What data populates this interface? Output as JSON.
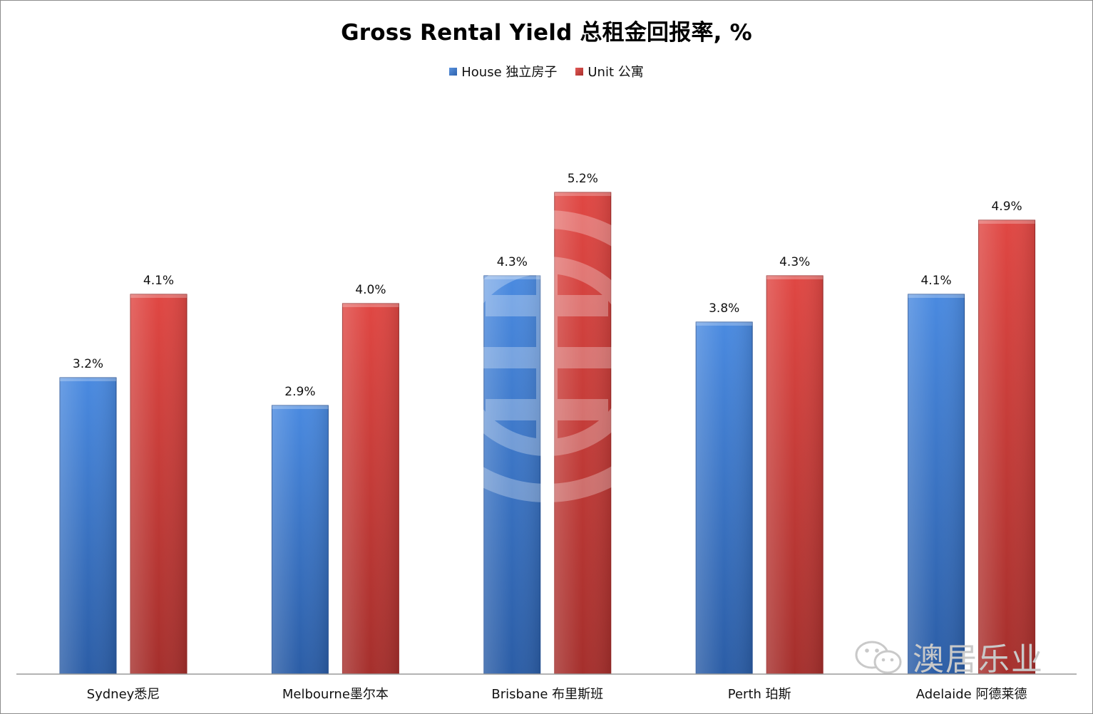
{
  "chart_data": {
    "type": "bar",
    "title": "Gross Rental Yield  总租金回报率, %",
    "categories": [
      "Sydney悉尼",
      "Melbourne墨尔本",
      "Brisbane 布里斯班",
      "Perth 珀斯",
      "Adelaide 阿德莱德"
    ],
    "series": [
      {
        "name": "House 独立房子",
        "values": [
          3.2,
          2.9,
          4.3,
          3.8,
          4.1
        ],
        "labels": [
          "3.2%",
          "2.9%",
          "4.3%",
          "3.8%",
          "4.1%"
        ],
        "color": "#3a78cf"
      },
      {
        "name": "Unit 公寓",
        "values": [
          4.1,
          4.0,
          5.2,
          4.3,
          4.9
        ],
        "labels": [
          "4.1%",
          "4.0%",
          "5.2%",
          "4.3%",
          "4.9%"
        ],
        "color": "#d13c39"
      }
    ],
    "legend_position": "top",
    "grid": false,
    "ylim": [
      0,
      6
    ]
  },
  "watermark": {
    "text": "澳居乐业",
    "icon": "wechat-icon"
  }
}
